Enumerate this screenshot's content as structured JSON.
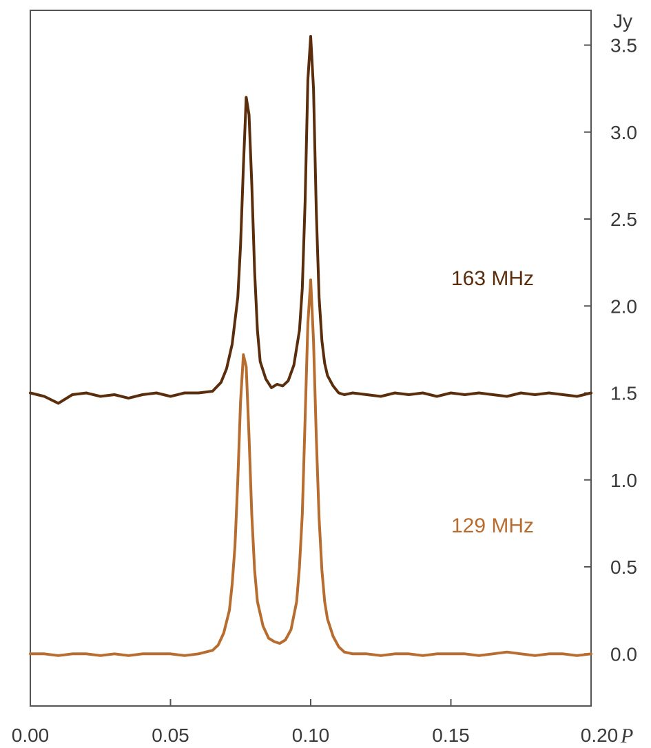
{
  "chart_data": {
    "type": "line",
    "title": "",
    "xlabel": "P",
    "ylabel": "Jy",
    "xlim": [
      0.0,
      0.2
    ],
    "ylim": [
      -0.3,
      3.7
    ],
    "x_ticks": [
      "0.00",
      "0.05",
      "0.10",
      "0.15",
      "0.20"
    ],
    "y_ticks": [
      "0.0",
      "0.5",
      "1.0",
      "1.5",
      "2.0",
      "2.5",
      "3.0",
      "3.5"
    ],
    "y_axis_side": "right",
    "grid": false,
    "series": [
      {
        "name": "163 MHz",
        "color": "#5a2e0c",
        "x": [
          0.0,
          0.005,
          0.01,
          0.015,
          0.02,
          0.025,
          0.03,
          0.035,
          0.04,
          0.045,
          0.05,
          0.055,
          0.06,
          0.065,
          0.068,
          0.07,
          0.072,
          0.074,
          0.075,
          0.076,
          0.077,
          0.078,
          0.079,
          0.08,
          0.081,
          0.082,
          0.084,
          0.086,
          0.088,
          0.09,
          0.092,
          0.094,
          0.096,
          0.097,
          0.098,
          0.099,
          0.1,
          0.101,
          0.102,
          0.103,
          0.104,
          0.105,
          0.106,
          0.108,
          0.11,
          0.112,
          0.115,
          0.12,
          0.125,
          0.13,
          0.135,
          0.14,
          0.145,
          0.15,
          0.155,
          0.16,
          0.165,
          0.17,
          0.175,
          0.18,
          0.185,
          0.19,
          0.195,
          0.2
        ],
        "y": [
          1.5,
          1.48,
          1.44,
          1.49,
          1.5,
          1.48,
          1.49,
          1.47,
          1.49,
          1.5,
          1.48,
          1.5,
          1.5,
          1.51,
          1.56,
          1.64,
          1.78,
          2.05,
          2.35,
          2.8,
          3.2,
          3.1,
          2.7,
          2.2,
          1.86,
          1.68,
          1.58,
          1.53,
          1.55,
          1.54,
          1.57,
          1.66,
          1.86,
          2.1,
          2.6,
          3.3,
          3.55,
          3.25,
          2.55,
          2.05,
          1.8,
          1.67,
          1.6,
          1.54,
          1.5,
          1.49,
          1.5,
          1.49,
          1.48,
          1.5,
          1.49,
          1.5,
          1.48,
          1.5,
          1.49,
          1.5,
          1.49,
          1.48,
          1.5,
          1.49,
          1.5,
          1.49,
          1.48,
          1.5
        ]
      },
      {
        "name": "129 MHz",
        "color": "#b86d30",
        "x": [
          0.0,
          0.005,
          0.01,
          0.015,
          0.02,
          0.025,
          0.03,
          0.035,
          0.04,
          0.045,
          0.05,
          0.055,
          0.06,
          0.065,
          0.067,
          0.069,
          0.071,
          0.072,
          0.073,
          0.074,
          0.075,
          0.076,
          0.077,
          0.078,
          0.079,
          0.08,
          0.081,
          0.083,
          0.085,
          0.087,
          0.089,
          0.091,
          0.093,
          0.095,
          0.096,
          0.097,
          0.098,
          0.099,
          0.1,
          0.101,
          0.102,
          0.103,
          0.104,
          0.105,
          0.106,
          0.108,
          0.11,
          0.112,
          0.115,
          0.12,
          0.125,
          0.13,
          0.135,
          0.14,
          0.145,
          0.15,
          0.155,
          0.16,
          0.165,
          0.17,
          0.175,
          0.18,
          0.185,
          0.19,
          0.195,
          0.2
        ],
        "y": [
          0.0,
          0.0,
          -0.01,
          0.0,
          0.0,
          -0.01,
          0.0,
          -0.01,
          0.0,
          0.0,
          0.0,
          -0.01,
          0.0,
          0.02,
          0.05,
          0.12,
          0.25,
          0.4,
          0.62,
          1.0,
          1.45,
          1.72,
          1.65,
          1.25,
          0.8,
          0.48,
          0.3,
          0.16,
          0.09,
          0.07,
          0.06,
          0.08,
          0.14,
          0.3,
          0.5,
          0.8,
          1.35,
          1.9,
          2.15,
          1.8,
          1.25,
          0.78,
          0.48,
          0.3,
          0.2,
          0.1,
          0.04,
          0.01,
          0.0,
          0.0,
          -0.01,
          0.0,
          0.0,
          -0.01,
          0.0,
          0.0,
          0.0,
          -0.01,
          0.0,
          0.01,
          0.0,
          -0.01,
          0.0,
          0.0,
          -0.01,
          0.0
        ]
      }
    ]
  }
}
